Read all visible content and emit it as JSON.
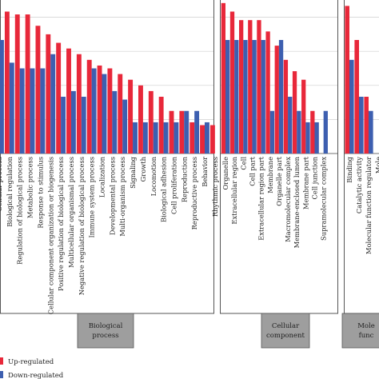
{
  "chart_data": {
    "type": "bar",
    "orientation": "vertical",
    "grid": true,
    "legend_placement": "bottom-left",
    "colors": {
      "up": "#e8283a",
      "down": "#3d5fb0",
      "panel_label_fill": "#9e9e9e",
      "grid": "#cfcfcf"
    },
    "legend": [
      {
        "name": "Up-regulated",
        "color": "#e8283a"
      },
      {
        "name": "Down-regulated",
        "color": "#3d5fb0"
      }
    ],
    "panels": [
      {
        "label": [
          "Biological",
          "process"
        ],
        "categories": [
          "Cellular process",
          "Biological regulation",
          "Regulation of biological process",
          "Metabolic process",
          "Response to stimulus",
          "Cellular component organization or biogenesis",
          "Positive regulation of biological process",
          "Multicellular organismal process",
          "Negative regulation of biological process",
          "Immune system process",
          "Localization",
          "Developmental process",
          "Multi-organism process",
          "Signaling",
          "Growth",
          "Locomotion",
          "Biological adhesion",
          "Cell proliferation",
          "Reproduction",
          "Reproductive process",
          "Behavior",
          "Rhythmic process"
        ],
        "series": [
          {
            "name": "Up-regulated",
            "values": [
              52,
              50,
              49,
              49,
              45,
              42,
              39,
              37,
              35,
              33,
              31,
              30,
              28,
              26,
              24,
              22,
              20,
              15,
              15,
              11,
              10,
              10
            ]
          },
          {
            "name": "Down-regulated",
            "values": [
              40,
              32,
              30,
              30,
              30,
              35,
              20,
              22,
              20,
              30,
              28,
              22,
              19,
              11,
              11,
              11,
              11,
              11,
              15,
              15,
              11,
              0
            ]
          }
        ]
      },
      {
        "label": [
          "Cellular",
          "component"
        ],
        "categories": [
          "Organelle",
          "Extracellular region",
          "Cell",
          "Cell part",
          "Extracellular region part",
          "Membrane",
          "Organelle part",
          "Macromolecular complex",
          "Membrane-enclosed lumen",
          "Membrane part",
          "Cell junction",
          "Supramolecular complex"
        ],
        "series": [
          {
            "name": "Up-regulated",
            "values": [
              53,
              50,
              47,
              47,
              47,
              43,
              38,
              33,
              29,
              26,
              15,
              0
            ]
          },
          {
            "name": "Down-regulated",
            "values": [
              40,
              40,
              40,
              40,
              40,
              15,
              40,
              20,
              15,
              11,
              11,
              15
            ]
          }
        ]
      },
      {
        "label": [
          "Mole",
          "func"
        ],
        "categories": [
          "Binding",
          "Catalytic activity",
          "Molecular function regulator",
          "Mole"
        ],
        "series": [
          {
            "name": "Up-regulated",
            "values": [
              52,
              40,
              20,
              0
            ]
          },
          {
            "name": "Down-regulated",
            "values": [
              33,
              20,
              15,
              0
            ]
          }
        ]
      }
    ]
  }
}
